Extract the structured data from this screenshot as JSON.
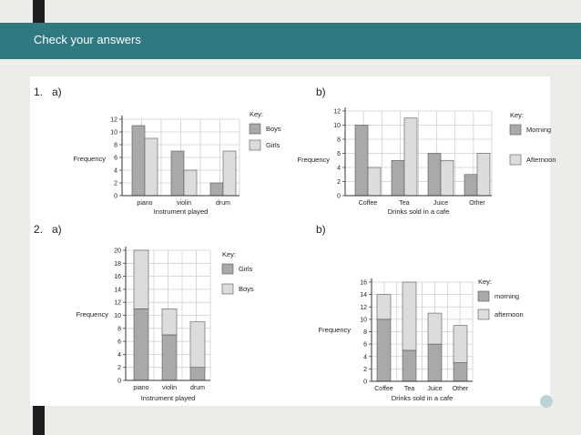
{
  "header": {
    "title": "Check your answers"
  },
  "labels": {
    "q1": "1.",
    "q1a": "a)",
    "q1b": "b)",
    "q2": "2.",
    "q2a": "a)",
    "q2b": "b)"
  },
  "colors": {
    "header_bg": "#2f7a80",
    "dark_series": "#a9a9a9",
    "light_series": "#dcdcdc"
  },
  "chart_data": [
    {
      "id": "q1a",
      "type": "bar",
      "categories": [
        "piano",
        "violin",
        "drum"
      ],
      "series": [
        {
          "name": "Boys",
          "values": [
            11,
            7,
            2
          ]
        },
        {
          "name": "Girls",
          "values": [
            9,
            4,
            7
          ]
        }
      ],
      "ylabel": "Frequency",
      "xlabel": "Instrument played",
      "ylim": [
        0,
        12
      ],
      "yticks": [
        0,
        2,
        4,
        6,
        8,
        10,
        12
      ],
      "legend_title": "Key:",
      "legend_position": "right",
      "grid": true
    },
    {
      "id": "q1b",
      "type": "bar",
      "categories": [
        "Coffee",
        "Tea",
        "Juice",
        "Other"
      ],
      "series": [
        {
          "name": "Morning",
          "values": [
            10,
            5,
            6,
            3
          ]
        },
        {
          "name": "Afternoon",
          "values": [
            4,
            11,
            5,
            6
          ]
        }
      ],
      "ylabel": "Frequency",
      "xlabel": "Drinks sold in a cafe",
      "ylim": [
        0,
        12
      ],
      "yticks": [
        0,
        2,
        4,
        6,
        8,
        10,
        12
      ],
      "legend_title": "Key:",
      "legend_position": "right",
      "grid": true
    },
    {
      "id": "q2a",
      "type": "bar",
      "stacked": true,
      "categories": [
        "piano",
        "violin",
        "drum"
      ],
      "series": [
        {
          "name": "Girls",
          "values": [
            11,
            7,
            2
          ]
        },
        {
          "name": "Boys",
          "values": [
            9,
            4,
            7
          ]
        }
      ],
      "ylabel": "Frequency",
      "xlabel": "Instrument played",
      "ylim": [
        0,
        20
      ],
      "yticks": [
        0,
        2,
        4,
        6,
        8,
        10,
        12,
        14,
        16,
        18,
        20
      ],
      "legend_title": "Key:",
      "legend_position": "right",
      "grid": true
    },
    {
      "id": "q2b",
      "type": "bar",
      "stacked": true,
      "categories": [
        "Coffee",
        "Tea",
        "Juice",
        "Other"
      ],
      "series": [
        {
          "name": "morning",
          "values": [
            10,
            5,
            6,
            3
          ]
        },
        {
          "name": "afternoon",
          "values": [
            4,
            11,
            5,
            6
          ]
        }
      ],
      "ylabel": "Frequency",
      "xlabel": "Drinks sold in a cafe",
      "ylim": [
        0,
        16
      ],
      "yticks": [
        0,
        2,
        4,
        6,
        8,
        10,
        12,
        14,
        16
      ],
      "legend_title": "Key:",
      "legend_position": "right",
      "grid": true
    }
  ]
}
